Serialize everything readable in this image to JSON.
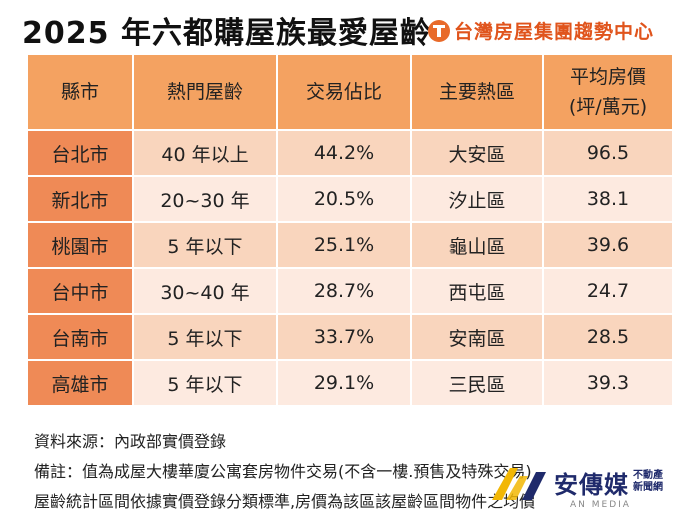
{
  "title": "2025 年六都購屋族最愛屋齡",
  "brand": {
    "name": "台灣房屋集團趨勢中心",
    "logo_icon": "t-circle-logo-icon",
    "color": "#e0541c"
  },
  "table": {
    "headers": [
      "縣市",
      "熱門屋齡",
      "交易佔比",
      "主要熱區"
    ],
    "price_header": {
      "line1": "平均房價",
      "line2": "(坪/萬元)"
    },
    "rows": [
      {
        "city": "台北市",
        "age": "40 年以上",
        "share": "44.2%",
        "district": "大安區",
        "price": "96.5"
      },
      {
        "city": "新北市",
        "age": "20~30 年",
        "share": "20.5%",
        "district": "汐止區",
        "price": "38.1"
      },
      {
        "city": "桃園市",
        "age": "5 年以下",
        "share": "25.1%",
        "district": "龜山區",
        "price": "39.6"
      },
      {
        "city": "台中市",
        "age": "30~40 年",
        "share": "28.7%",
        "district": "西屯區",
        "price": "24.7"
      },
      {
        "city": "台南市",
        "age": "5 年以下",
        "share": "33.7%",
        "district": "安南區",
        "price": "28.5"
      },
      {
        "city": "高雄市",
        "age": "5 年以下",
        "share": "29.1%",
        "district": "三民區",
        "price": "39.3"
      }
    ]
  },
  "footnotes": {
    "source": "資料來源：內政部實價登錄",
    "note1": "備註：值為成屋大樓華廈公寓套房物件交易(不含一樓.預售及特殊交易)",
    "note2": "屋齡統計區間依據實價登錄分類標準,房價為該區該屋齡區間物件之均價"
  },
  "watermark": {
    "name": "安傳媒",
    "sub1": "不動產",
    "sub2": "新聞網",
    "eng": "AN MEDIA",
    "logo_icon": "an-media-logo-icon"
  },
  "colors": {
    "header": "#f4a261",
    "city": "#ef8a56",
    "row_dark": "#f9d5bd",
    "row_light": "#fdeae0"
  }
}
